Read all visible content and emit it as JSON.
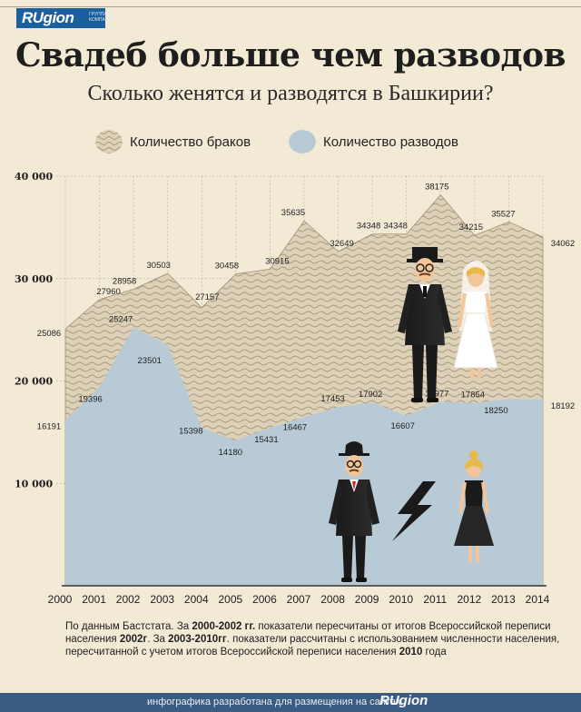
{
  "brand": {
    "logo": "RUgion",
    "logo_subtitle": "ГРУППА КОМПАНИЙ"
  },
  "title": "Свадеб больше чем разводов",
  "subtitle": "Сколько женятся и разводятся в Башкирии?",
  "legend": {
    "marriages": "Количество браков",
    "divorces": "Количество разводов"
  },
  "colors": {
    "marriages_fill": "#ddd2b9",
    "marriages_wave": "#a89878",
    "divorces_fill": "#b8cad6",
    "grid": "#a9a9a9",
    "text": "#1e1e1e"
  },
  "chart_data": {
    "type": "area",
    "x": [
      "2000",
      "2001",
      "2002",
      "2003",
      "2004",
      "2005",
      "2006",
      "2007",
      "2008",
      "2009",
      "2010",
      "2011",
      "2012",
      "2013",
      "2014"
    ],
    "series": [
      {
        "name": "Количество браков",
        "values": [
          25086,
          27960,
          28958,
          30503,
          27157,
          30458,
          30915,
          35635,
          32649,
          34348,
          34348,
          38175,
          34215,
          35527,
          34062
        ]
      },
      {
        "name": "Количество разводов",
        "values": [
          16191,
          19396,
          25247,
          23501,
          15398,
          14180,
          15431,
          16467,
          17453,
          17902,
          16607,
          17977,
          17854,
          18250,
          18192
        ]
      }
    ],
    "y_ticks": [
      "40 000",
      "30 000",
      "20 000",
      "10 000"
    ],
    "y_tick_values": [
      40000,
      30000,
      20000,
      10000
    ],
    "ylim": [
      0,
      40000
    ],
    "grid": true,
    "legend_position": "top"
  },
  "footnote": {
    "p1": "По данным Баcтстата. За ",
    "b1": "2000-2002 гг.",
    "p2": " показатели пересчитаны от итогов Всероссийской переписи населения ",
    "b2": "2002г",
    "p3": ". За ",
    "b3": "2003-2010гг",
    "p4": ". показатели рассчитаны с использованием численности населения, пересчитанной с учетом итогов Всероссийской переписи населения ",
    "b4": "2010",
    "p5": " года"
  },
  "footer": {
    "text": "инфографика разработана для размещения на сайтах",
    "logo": "RUgion"
  }
}
